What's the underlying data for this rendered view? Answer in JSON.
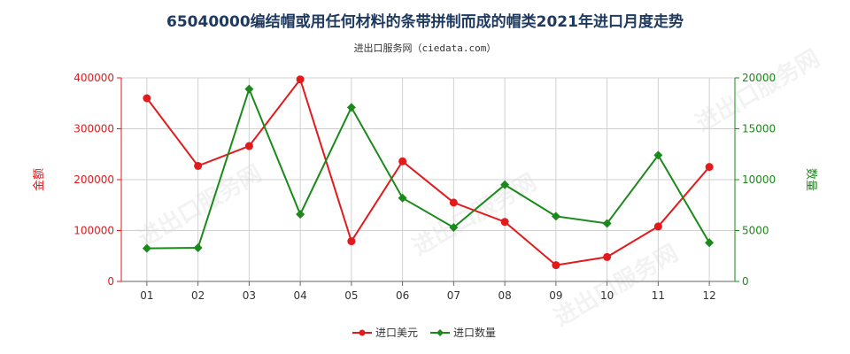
{
  "chart_data": {
    "type": "line",
    "title": "65040000编结帽或用任何材料的条带拼制而成的帽类2021年进口月度走势",
    "subtitle": "进出口服务网（ciedata.com）",
    "categories": [
      "01",
      "02",
      "03",
      "04",
      "05",
      "06",
      "07",
      "08",
      "09",
      "10",
      "11",
      "12"
    ],
    "series": [
      {
        "name": "进口美元",
        "axis": "left",
        "color": "#e31a1c",
        "values": [
          360000,
          227000,
          266000,
          397000,
          79000,
          236000,
          155000,
          117000,
          32000,
          48000,
          108000,
          225000
        ]
      },
      {
        "name": "进口数量",
        "axis": "right",
        "color": "#1a8a1a",
        "values": [
          3250,
          3300,
          18900,
          6600,
          17100,
          8200,
          5300,
          9500,
          6400,
          5700,
          12400,
          3800
        ]
      }
    ],
    "y_left": {
      "label": "金额",
      "ylim": [
        0,
        400000
      ],
      "ticks": [
        "0",
        "100000",
        "200000",
        "300000",
        "400000"
      ],
      "color": "#e31a1c"
    },
    "y_right": {
      "label": "数量",
      "ylim": [
        0,
        20000
      ],
      "ticks": [
        "0",
        "5000",
        "10000",
        "15000",
        "20000"
      ],
      "color": "#1a8a1a"
    },
    "grid": true,
    "legend_position": "bottom-center",
    "watermark": "进出口服务网"
  }
}
